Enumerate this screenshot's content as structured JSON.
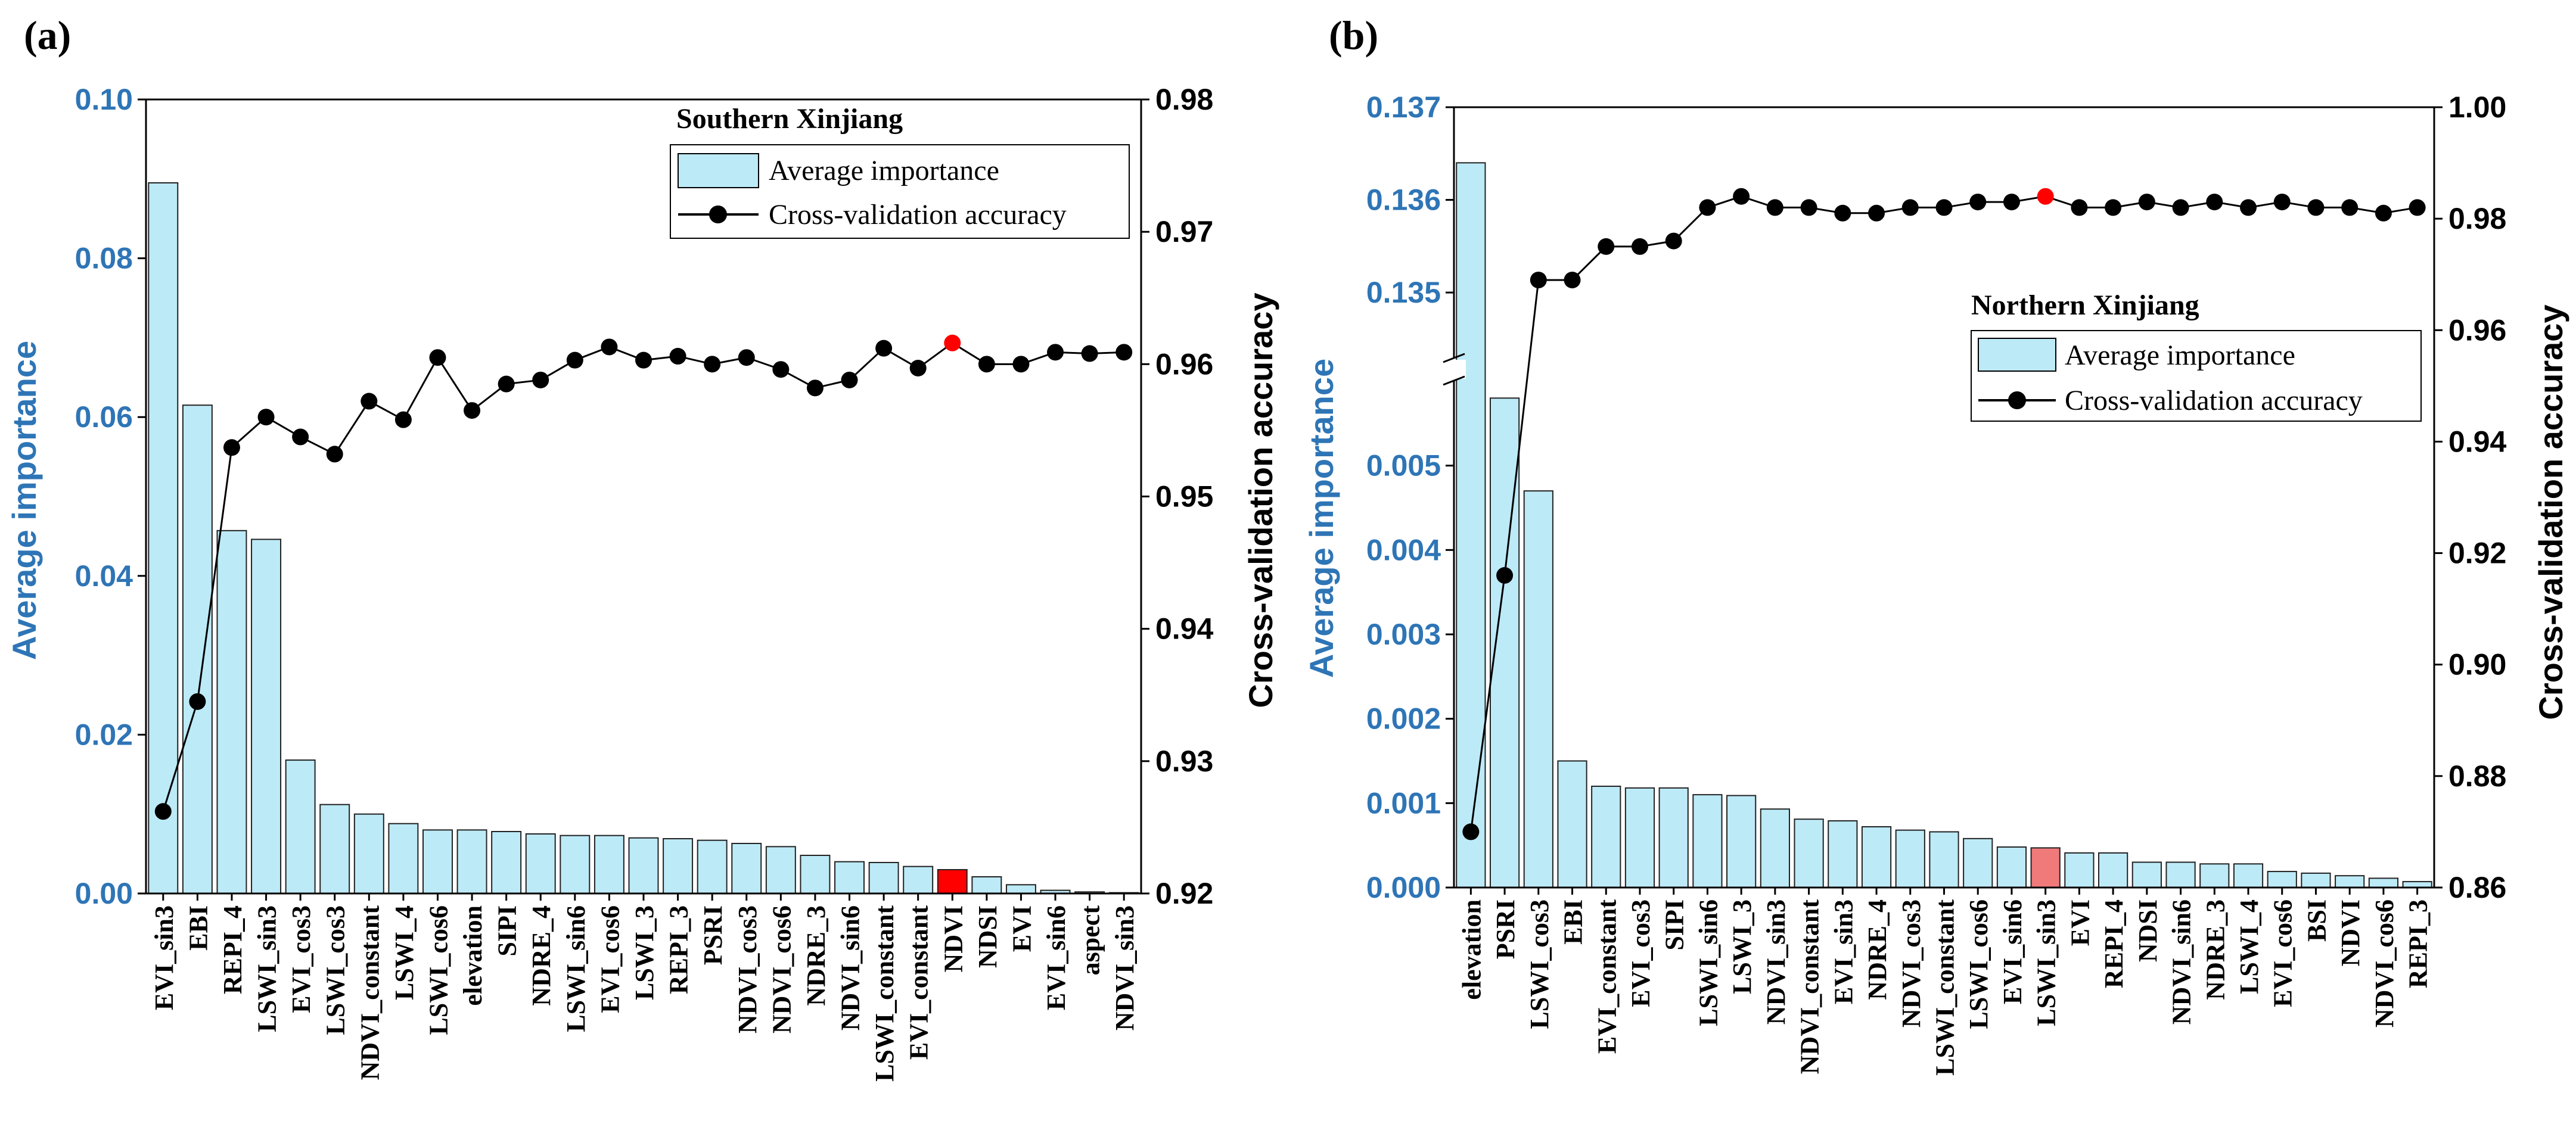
{
  "figure": {
    "panel_a_label": "(a)",
    "panel_b_label": "(b)"
  },
  "chart_data": [
    {
      "type": "bar",
      "panel": "(a)",
      "title": "Southern Xinjiang",
      "ylabel": "Average importance",
      "y2label": "Cross-validation accuracy",
      "ylim": [
        0,
        0.1
      ],
      "y2lim": [
        0.92,
        0.98
      ],
      "yticks": [
        "0.00",
        "0.02",
        "0.04",
        "0.06",
        "0.08",
        "0.10"
      ],
      "y2ticks": [
        "0.92",
        "0.93",
        "0.94",
        "0.95",
        "0.96",
        "0.97",
        "0.98"
      ],
      "legend": [
        "Average importance",
        "Cross-validation accuracy"
      ],
      "legend_position": "top-right",
      "highlight": "NDVI",
      "categories": [
        "EVI_sin3",
        "EBI",
        "REPI_4",
        "LSWI_sin3",
        "EVI_cos3",
        "LSWI_cos3",
        "NDVI_constant",
        "LSWI_4",
        "LSWI_cos6",
        "elevation",
        "SIPI",
        "NDRE_4",
        "LSWI_sin6",
        "EVI_cos6",
        "LSWI_3",
        "REPI_3",
        "PSRI",
        "NDVI_cos3",
        "NDVI_cos6",
        "NDRE_3",
        "NDVI_sin6",
        "LSWI_constant",
        "EVI_constant",
        "NDVI",
        "NDSI",
        "EVI",
        "EVI_sin6",
        "aspect",
        "NDVI_sin3"
      ],
      "series": [
        {
          "name": "Average importance",
          "values": [
            0.0895,
            0.0615,
            0.0457,
            0.0446,
            0.0168,
            0.0112,
            0.01,
            0.0088,
            0.008,
            0.008,
            0.0078,
            0.0075,
            0.0073,
            0.0073,
            0.007,
            0.0069,
            0.0067,
            0.0063,
            0.0059,
            0.0048,
            0.004,
            0.0039,
            0.0034,
            0.003,
            0.0021,
            0.0011,
            0.0004,
            0.0002,
            0.0001
          ]
        },
        {
          "name": "Cross-validation accuracy",
          "values": [
            0.9262,
            0.9345,
            0.9537,
            0.956,
            0.9545,
            0.9532,
            0.9572,
            0.9558,
            0.9605,
            0.9565,
            0.9585,
            0.9588,
            0.9603,
            0.9613,
            0.9603,
            0.9606,
            0.96,
            0.9605,
            0.9596,
            0.9582,
            0.9588,
            0.9612,
            0.9597,
            0.9616,
            0.96,
            0.96,
            0.9609,
            0.9608,
            0.9609
          ]
        }
      ]
    },
    {
      "type": "bar",
      "panel": "(b)",
      "title": "Northern Xinjiang",
      "ylabel": "Average importance",
      "y2label": "Cross-validation accuracy",
      "ylim_lower": [
        0,
        0.006
      ],
      "ylim_upper": [
        0.1343,
        0.137
      ],
      "y2lim": [
        0.86,
        1.0
      ],
      "yticks": [
        "0.000",
        "0.001",
        "0.002",
        "0.003",
        "0.004",
        "0.005",
        "0.135",
        "0.136",
        "0.137"
      ],
      "y2ticks": [
        "0.86",
        "0.88",
        "0.90",
        "0.92",
        "0.94",
        "0.96",
        "0.98",
        "1.00"
      ],
      "legend": [
        "Average importance",
        "Cross-validation accuracy"
      ],
      "legend_position": "center-right",
      "highlight": "LSWI_sin3",
      "categories": [
        "elevation",
        "PSRI",
        "LSWI_cos3",
        "EBI",
        "EVI_constant",
        "EVI_cos3",
        "SIPI",
        "LSWI_sin6",
        "LSWI_3",
        "NDVI_sin3",
        "NDVI_constant",
        "EVI_sin3",
        "NDRE_4",
        "NDVI_cos3",
        "LSWI_constant",
        "LSWI_cos6",
        "EVI_sin6",
        "LSWI_sin3",
        "EVI",
        "REPI_4",
        "NDSI",
        "NDVI_sin6",
        "NDRE_3",
        "LSWI_4",
        "EVI_cos6",
        "BSI",
        "NDVI",
        "NDVI_cos6",
        "REPI_3"
      ],
      "series": [
        {
          "name": "Average importance",
          "values": [
            0.1364,
            0.0058,
            0.0047,
            0.0015,
            0.0012,
            0.00118,
            0.00118,
            0.0011,
            0.00109,
            0.00093,
            0.00081,
            0.00079,
            0.00072,
            0.00068,
            0.00066,
            0.00058,
            0.00048,
            0.00047,
            0.00041,
            0.00041,
            0.0003,
            0.0003,
            0.00028,
            0.00028,
            0.00019,
            0.00017,
            0.00014,
            0.00011,
            7e-05
          ]
        },
        {
          "name": "Cross-validation accuracy",
          "values": [
            0.87,
            0.916,
            0.969,
            0.969,
            0.975,
            0.975,
            0.976,
            0.982,
            0.984,
            0.982,
            0.982,
            0.981,
            0.981,
            0.982,
            0.982,
            0.983,
            0.983,
            0.984,
            0.982,
            0.982,
            0.983,
            0.982,
            0.983,
            0.982,
            0.983,
            0.982,
            0.982,
            0.981,
            0.982
          ]
        }
      ]
    }
  ]
}
